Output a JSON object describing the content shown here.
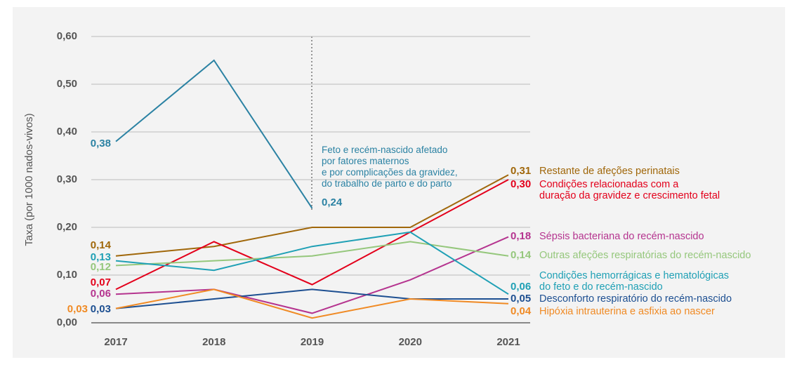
{
  "chart_data": {
    "type": "line",
    "y_label": "Taxa (por 1000 nados-vivos)",
    "categories": [
      "2017",
      "2018",
      "2019",
      "2020",
      "2021"
    ],
    "ylim": [
      0,
      0.6
    ],
    "yticks": [
      {
        "value": 0,
        "label": "0,00"
      },
      {
        "value": 0.1,
        "label": "0,10"
      },
      {
        "value": 0.2,
        "label": "0,20"
      },
      {
        "value": 0.3,
        "label": "0,30"
      },
      {
        "value": 0.4,
        "label": "0,40"
      },
      {
        "value": 0.5,
        "label": "0,50"
      },
      {
        "value": 0.6,
        "label": "0,60"
      }
    ],
    "grid": true,
    "series": [
      {
        "name": "Feto e recém-nascido afetado\npor fatores maternos\ne por complicações da gravidez,\ndo trabalho de parto e do parto",
        "color": "#2b82a3",
        "values": [
          0.38,
          0.55,
          0.24,
          null,
          null
        ],
        "value_labels": [
          "0,38",
          null,
          "0,24",
          null,
          null
        ]
      },
      {
        "name": "Restante de afeções perinatais",
        "color": "#a0670a",
        "values": [
          0.14,
          0.16,
          0.2,
          0.2,
          0.31
        ],
        "value_labels": [
          "0,14",
          null,
          null,
          null,
          "0,31"
        ]
      },
      {
        "name": "Condições relacionadas com a\nduração da gravidez e crescimento fetal",
        "color": "#e3001b",
        "values": [
          0.07,
          0.17,
          0.08,
          0.19,
          0.3
        ],
        "value_labels": [
          "0,07",
          null,
          null,
          null,
          "0,30"
        ]
      },
      {
        "name": "Sépsis bacteriana do recém-nascido",
        "color": "#b5348f",
        "values": [
          0.06,
          0.07,
          0.02,
          0.09,
          0.18
        ],
        "value_labels": [
          "0,06",
          null,
          null,
          null,
          "0,18"
        ]
      },
      {
        "name": "Outras afeções respiratórias do recém-nascido",
        "color": "#95c77c",
        "values": [
          0.12,
          0.13,
          0.14,
          0.17,
          0.14
        ],
        "value_labels": [
          "0,12",
          null,
          null,
          null,
          "0,14"
        ]
      },
      {
        "name": "Condições hemorrágicas e hematológicas\ndo feto e do recém-nascido",
        "color": "#1fa0b5",
        "values": [
          0.13,
          0.11,
          0.16,
          0.19,
          0.06
        ],
        "value_labels": [
          "0,13",
          null,
          null,
          null,
          "0,06"
        ]
      },
      {
        "name": "Desconforto respiratório do recém-nascido",
        "color": "#1d4f91",
        "values": [
          0.03,
          0.05,
          0.07,
          0.05,
          0.05
        ],
        "value_labels": [
          "0,03",
          null,
          null,
          null,
          "0,05"
        ]
      },
      {
        "name": "Hipóxia intrauterina e asfixia ao nascer",
        "color": "#f08a24",
        "values": [
          0.03,
          0.07,
          0.01,
          0.05,
          0.04
        ],
        "value_labels": [
          "0,03",
          null,
          null,
          null,
          "0,04"
        ]
      }
    ]
  }
}
